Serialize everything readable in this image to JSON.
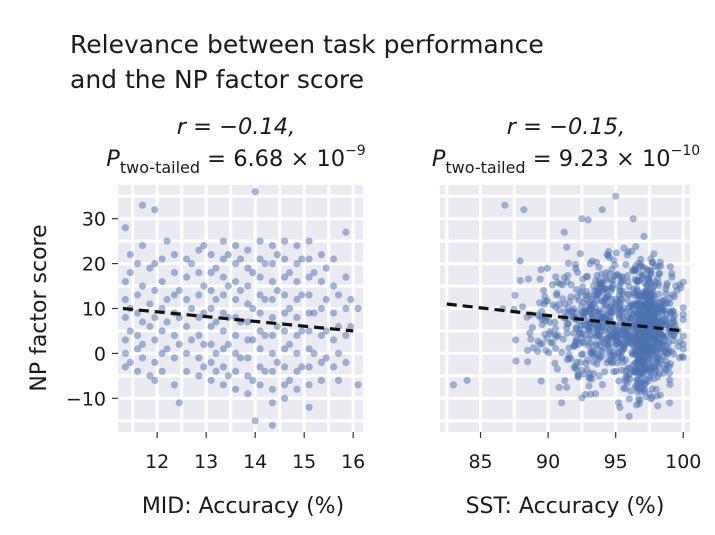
{
  "figure": {
    "title_line1": "Relevance between task performance",
    "title_line2": "and the NP factor score"
  },
  "colors": {
    "points": "#4c72b0",
    "panel_background": "#eaeaf2",
    "grid": "#ffffff",
    "trend": "#111111"
  },
  "chart_data": [
    {
      "type": "scatter",
      "panel": "left",
      "stat_r": "r = −0.14,",
      "stat_p_letter": "P",
      "stat_p_subscript": "two-tailed",
      "stat_p_value": " = 6.68 × 10",
      "stat_p_exponent": "−9",
      "xlabel": "MID: Accuracy (%)",
      "ylabel": "NP factor score",
      "xlim": [
        11.2,
        16.2
      ],
      "ylim": [
        -17.5,
        37.5
      ],
      "xticks": [
        12,
        13,
        14,
        15,
        16
      ],
      "yticks": [
        -10,
        0,
        10,
        20,
        30
      ],
      "xticklabels": [
        "12",
        "13",
        "14",
        "15",
        "16"
      ],
      "yticklabels": [
        "−10",
        "0",
        "10",
        "20",
        "30"
      ],
      "trend_line": {
        "x": [
          11.3,
          16.0
        ],
        "y": [
          10.0,
          5.0
        ]
      },
      "points": [
        [
          11.35,
          28
        ],
        [
          11.35,
          16
        ],
        [
          11.35,
          12
        ],
        [
          11.35,
          8
        ],
        [
          11.35,
          3
        ],
        [
          11.35,
          0
        ],
        [
          11.35,
          -3
        ],
        [
          11.45,
          22
        ],
        [
          11.45,
          18
        ],
        [
          11.45,
          10
        ],
        [
          11.45,
          5
        ],
        [
          11.45,
          -2
        ],
        [
          11.6,
          20
        ],
        [
          11.6,
          13
        ],
        [
          11.6,
          9
        ],
        [
          11.6,
          4
        ],
        [
          11.6,
          1
        ],
        [
          11.6,
          -4
        ],
        [
          11.7,
          33
        ],
        [
          11.7,
          24
        ],
        [
          11.7,
          15
        ],
        [
          11.7,
          7
        ],
        [
          11.7,
          2
        ],
        [
          11.7,
          -1
        ],
        [
          11.85,
          19
        ],
        [
          11.85,
          11
        ],
        [
          11.85,
          6
        ],
        [
          11.85,
          -5
        ],
        [
          11.95,
          32
        ],
        [
          11.95,
          20
        ],
        [
          11.95,
          14
        ],
        [
          11.95,
          8
        ],
        [
          11.95,
          3
        ],
        [
          11.95,
          -2
        ],
        [
          11.95,
          -6
        ],
        [
          12.1,
          21
        ],
        [
          12.1,
          16
        ],
        [
          12.1,
          10
        ],
        [
          12.1,
          5
        ],
        [
          12.1,
          0
        ],
        [
          12.1,
          -4
        ],
        [
          12.2,
          25
        ],
        [
          12.2,
          12
        ],
        [
          12.2,
          7
        ],
        [
          12.2,
          1
        ],
        [
          12.35,
          22
        ],
        [
          12.35,
          18
        ],
        [
          12.35,
          13
        ],
        [
          12.35,
          9
        ],
        [
          12.35,
          4
        ],
        [
          12.35,
          -1
        ],
        [
          12.35,
          -7
        ],
        [
          12.45,
          -11
        ],
        [
          12.45,
          14
        ],
        [
          12.45,
          8
        ],
        [
          12.45,
          2
        ],
        [
          12.6,
          21
        ],
        [
          12.6,
          17
        ],
        [
          12.6,
          12
        ],
        [
          12.6,
          6
        ],
        [
          12.6,
          0
        ],
        [
          12.6,
          -4
        ],
        [
          12.7,
          20
        ],
        [
          12.7,
          10
        ],
        [
          12.7,
          3
        ],
        [
          12.85,
          23
        ],
        [
          12.85,
          18
        ],
        [
          12.85,
          13
        ],
        [
          12.85,
          8
        ],
        [
          12.85,
          4
        ],
        [
          12.85,
          -1
        ],
        [
          12.85,
          -5
        ],
        [
          12.95,
          24
        ],
        [
          12.95,
          15
        ],
        [
          12.95,
          9
        ],
        [
          12.95,
          2
        ],
        [
          12.95,
          -3
        ],
        [
          13.1,
          22
        ],
        [
          13.1,
          18
        ],
        [
          13.1,
          14
        ],
        [
          13.1,
          10
        ],
        [
          13.1,
          6
        ],
        [
          13.1,
          2
        ],
        [
          13.1,
          -2
        ],
        [
          13.1,
          -6
        ],
        [
          13.2,
          19
        ],
        [
          13.2,
          12
        ],
        [
          13.2,
          7
        ],
        [
          13.2,
          0
        ],
        [
          13.2,
          -4
        ],
        [
          13.35,
          25
        ],
        [
          13.35,
          21
        ],
        [
          13.35,
          17
        ],
        [
          13.35,
          13
        ],
        [
          13.35,
          9
        ],
        [
          13.35,
          5
        ],
        [
          13.35,
          1
        ],
        [
          13.35,
          -3
        ],
        [
          13.35,
          -7
        ],
        [
          13.45,
          22
        ],
        [
          13.45,
          15
        ],
        [
          13.45,
          8
        ],
        [
          13.45,
          2
        ],
        [
          13.45,
          -5
        ],
        [
          13.6,
          24
        ],
        [
          13.6,
          20
        ],
        [
          13.6,
          16
        ],
        [
          13.6,
          12
        ],
        [
          13.6,
          8
        ],
        [
          13.6,
          4
        ],
        [
          13.6,
          0
        ],
        [
          13.6,
          -4
        ],
        [
          13.6,
          -8
        ],
        [
          13.7,
          21
        ],
        [
          13.7,
          14
        ],
        [
          13.7,
          7
        ],
        [
          13.7,
          -1
        ],
        [
          13.85,
          23
        ],
        [
          13.85,
          19
        ],
        [
          13.85,
          15
        ],
        [
          13.85,
          11
        ],
        [
          13.85,
          7
        ],
        [
          13.85,
          3
        ],
        [
          13.85,
          -1
        ],
        [
          13.85,
          -5
        ],
        [
          13.85,
          -9
        ],
        [
          13.95,
          18
        ],
        [
          13.95,
          10
        ],
        [
          13.95,
          3
        ],
        [
          13.95,
          -6
        ],
        [
          14.0,
          36
        ],
        [
          14.1,
          25
        ],
        [
          14.1,
          21
        ],
        [
          14.1,
          17
        ],
        [
          14.1,
          13
        ],
        [
          14.1,
          9
        ],
        [
          14.1,
          5
        ],
        [
          14.1,
          1
        ],
        [
          14.1,
          -3
        ],
        [
          14.1,
          -7
        ],
        [
          14.0,
          -15
        ],
        [
          14.2,
          20
        ],
        [
          14.2,
          12
        ],
        [
          14.2,
          4
        ],
        [
          14.2,
          -4
        ],
        [
          14.35,
          24
        ],
        [
          14.35,
          20
        ],
        [
          14.35,
          16
        ],
        [
          14.35,
          12
        ],
        [
          14.35,
          8
        ],
        [
          14.35,
          4
        ],
        [
          14.35,
          0
        ],
        [
          14.35,
          -4
        ],
        [
          14.35,
          -8
        ],
        [
          14.35,
          -11
        ],
        [
          14.35,
          -16
        ],
        [
          14.45,
          22
        ],
        [
          14.45,
          14
        ],
        [
          14.45,
          6
        ],
        [
          14.45,
          -2
        ],
        [
          14.6,
          25
        ],
        [
          14.6,
          21
        ],
        [
          14.6,
          17
        ],
        [
          14.6,
          13
        ],
        [
          14.6,
          9
        ],
        [
          14.6,
          5
        ],
        [
          14.6,
          1
        ],
        [
          14.6,
          -3
        ],
        [
          14.6,
          -7
        ],
        [
          14.6,
          -10
        ],
        [
          14.7,
          18
        ],
        [
          14.7,
          10
        ],
        [
          14.7,
          2
        ],
        [
          14.7,
          -6
        ],
        [
          14.85,
          24
        ],
        [
          14.85,
          20
        ],
        [
          14.85,
          16
        ],
        [
          14.85,
          12
        ],
        [
          14.85,
          8
        ],
        [
          14.85,
          4
        ],
        [
          14.85,
          0
        ],
        [
          14.85,
          -4
        ],
        [
          14.85,
          -8
        ],
        [
          14.95,
          21
        ],
        [
          14.95,
          13
        ],
        [
          14.95,
          5
        ],
        [
          14.95,
          -3
        ],
        [
          15.1,
          25
        ],
        [
          15.1,
          21
        ],
        [
          15.1,
          17
        ],
        [
          15.1,
          13
        ],
        [
          15.1,
          9
        ],
        [
          15.1,
          5
        ],
        [
          15.1,
          1
        ],
        [
          15.1,
          -3
        ],
        [
          15.1,
          -7
        ],
        [
          15.1,
          -12
        ],
        [
          15.2,
          18
        ],
        [
          15.2,
          9
        ],
        [
          15.2,
          0
        ],
        [
          15.35,
          22
        ],
        [
          15.35,
          16
        ],
        [
          15.35,
          10
        ],
        [
          15.35,
          4
        ],
        [
          15.35,
          -2
        ],
        [
          15.35,
          -6
        ],
        [
          15.45,
          19
        ],
        [
          15.45,
          12
        ],
        [
          15.45,
          5
        ],
        [
          15.45,
          -1
        ],
        [
          15.6,
          21
        ],
        [
          15.6,
          15
        ],
        [
          15.6,
          9
        ],
        [
          15.6,
          3
        ],
        [
          15.6,
          -3
        ],
        [
          15.7,
          13
        ],
        [
          15.7,
          6
        ],
        [
          15.7,
          0
        ],
        [
          15.7,
          -6
        ],
        [
          15.85,
          27
        ],
        [
          15.85,
          17
        ],
        [
          15.85,
          10
        ],
        [
          15.85,
          4
        ],
        [
          15.85,
          -2
        ],
        [
          15.95,
          12
        ],
        [
          15.95,
          6
        ],
        [
          16.1,
          10
        ],
        [
          16.1,
          -7
        ]
      ]
    },
    {
      "type": "scatter",
      "panel": "right",
      "stat_r": "r = −0.15,",
      "stat_p_letter": "P",
      "stat_p_subscript": "two-tailed",
      "stat_p_value": " = 9.23 × 10",
      "stat_p_exponent": "−10",
      "xlabel": "SST: Accuracy (%)",
      "ylabel": "",
      "xlim": [
        82.0,
        100.5
      ],
      "ylim": [
        -17.5,
        37.5
      ],
      "xticks": [
        85,
        90,
        95,
        100
      ],
      "yticks": [
        -10,
        0,
        10,
        20,
        30
      ],
      "xticklabels": [
        "85",
        "90",
        "95",
        "100"
      ],
      "trend_line": {
        "x": [
          82.5,
          100.0
        ],
        "y": [
          11.0,
          5.0
        ]
      },
      "points_generated": {
        "n": 1100,
        "x_range": [
          82.3,
          100.0
        ],
        "center_x": 96.5,
        "center_y": 6.0
      },
      "outliers": [
        [
          86.8,
          33
        ],
        [
          88.2,
          32
        ],
        [
          91.2,
          27
        ],
        [
          92.5,
          30
        ],
        [
          94.0,
          32
        ],
        [
          95.0,
          35
        ],
        [
          96.3,
          30
        ],
        [
          91.0,
          -11
        ],
        [
          93.5,
          -9
        ],
        [
          95.2,
          -11
        ],
        [
          96.0,
          -14
        ],
        [
          99.0,
          -11
        ],
        [
          84.0,
          -6
        ],
        [
          83.0,
          -7
        ],
        [
          98.0,
          -8
        ]
      ]
    }
  ]
}
